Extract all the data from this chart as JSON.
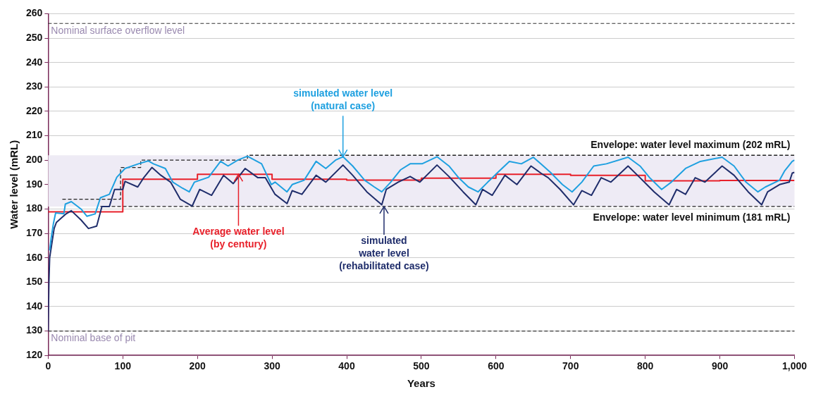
{
  "chart_data": {
    "type": "line",
    "xlabel": "Years",
    "ylabel": "Water level (mRL)",
    "xlim": [
      0,
      1000
    ],
    "xticks": [
      0,
      100,
      200,
      300,
      400,
      500,
      600,
      700,
      800,
      900,
      {
        "value": 1000,
        "label": "1,000"
      }
    ],
    "ylim": [
      120,
      260
    ],
    "yticks": [
      120,
      130,
      140,
      150,
      160,
      170,
      180,
      190,
      200,
      210,
      220,
      230,
      240,
      250,
      260
    ],
    "grid": "y",
    "legend": false,
    "line_style": "solid",
    "marker": "none",
    "series": [
      {
        "color": "#1ea0e0",
        "x": [
          2,
          4,
          7,
          10,
          21,
          23,
          31,
          44,
          52,
          63,
          70,
          82,
          92,
          103,
          121,
          134,
          141,
          157,
          167,
          180,
          189,
          196,
          215,
          231,
          241,
          254,
          267,
          286,
          299,
          304,
          320,
          327,
          343,
          359,
          372,
          385,
          395,
          408,
          424,
          437,
          447,
          459,
          472,
          485,
          501,
          521,
          537,
          550,
          563,
          576,
          589,
          605,
          618,
          634,
          650,
          660,
          673,
          689,
          702,
          715,
          731,
          748,
          777,
          793,
          806,
          822,
          835,
          854,
          874,
          903,
          919,
          935,
          951,
          961,
          980,
          987,
          997,
          1000
        ],
        "values": [
          163,
          168,
          174,
          178.4,
          178,
          182,
          183,
          180,
          177,
          178,
          184.6,
          186,
          193,
          196.6,
          198.5,
          199.7,
          198.5,
          196.6,
          191,
          188.5,
          187,
          191,
          193,
          199.5,
          197.6,
          200,
          201.6,
          198.5,
          190,
          191,
          187,
          190,
          191.8,
          199.5,
          196.6,
          200,
          201.4,
          197.6,
          191.8,
          189,
          187,
          191,
          196,
          198.5,
          198.5,
          201.4,
          197.6,
          192.8,
          189,
          187,
          191,
          195.7,
          199.5,
          198.5,
          201.2,
          198.5,
          195,
          190,
          187,
          191,
          197.6,
          198.5,
          201.2,
          197.6,
          192.8,
          188,
          191,
          196.6,
          199.5,
          201.2,
          197.6,
          191,
          187,
          189,
          191.8,
          195.7,
          199.5,
          200
        ]
      },
      {
        "color": "#1f2d6b",
        "x": [
          0,
          1,
          2,
          5,
          8,
          11,
          24,
          31,
          44,
          54,
          65,
          72,
          82,
          89,
          100,
          103,
          120,
          128,
          139,
          151,
          164,
          177,
          193,
          203,
          219,
          235,
          248,
          264,
          281,
          291,
          304,
          320,
          327,
          340,
          359,
          372,
          395,
          408,
          427,
          447,
          453,
          469,
          485,
          498,
          521,
          537,
          556,
          573,
          582,
          595,
          612,
          628,
          647,
          660,
          670,
          686,
          704,
          715,
          728,
          741,
          754,
          777,
          793,
          812,
          832,
          842,
          854,
          867,
          880,
          903,
          919,
          938,
          956,
          964,
          980,
          993,
          997,
          1000
        ],
        "values": [
          130,
          150,
          160,
          166,
          172,
          174.5,
          178,
          179.3,
          175.5,
          172,
          173,
          181,
          181,
          188,
          188,
          191.3,
          189,
          192.8,
          197,
          193.8,
          191,
          184,
          181.2,
          188,
          185.6,
          193.8,
          190.4,
          196.6,
          192.8,
          192.8,
          186,
          182.2,
          187.5,
          186,
          193.8,
          191,
          198,
          193.8,
          187,
          181.7,
          188,
          191,
          193.3,
          191,
          198,
          193.3,
          187,
          181.7,
          188,
          185.6,
          193.8,
          190,
          197.6,
          194.7,
          192.8,
          188,
          181.7,
          187.5,
          185.6,
          192.8,
          191,
          197.6,
          192.8,
          187,
          181.7,
          188,
          186,
          192.8,
          191,
          197.6,
          193.8,
          187,
          181.7,
          187,
          190,
          191,
          194.7,
          195
        ]
      },
      {
        "type": "step",
        "color": "#e8202a",
        "x": [
          0,
          100,
          200,
          300,
          400,
          500,
          600,
          700,
          800,
          900,
          1000
        ],
        "values": [
          178.8,
          192.2,
          194.2,
          192.2,
          191.8,
          192.6,
          194.2,
          193.8,
          191.5,
          191.7,
          191.7
        ]
      },
      {
        "type": "step",
        "name": "Envelope: water level maximum (202 mRL)",
        "color": "#222222",
        "line_style": "dashed",
        "x": [
          19,
          97,
          124,
          267,
          1000
        ],
        "values": [
          184,
          197,
          200,
          202,
          202
        ]
      },
      {
        "type": "step",
        "name": "Envelope: water level minimum (181 mRL)",
        "color": "#222222",
        "line_style": "dashed",
        "x": [
          70,
          1000
        ],
        "values": [
          181,
          181
        ]
      }
    ],
    "bands": [
      {
        "axis": "y",
        "from": 181,
        "to": 202,
        "color": "#eeebf5"
      }
    ],
    "ref_lines": [
      {
        "axis": "y",
        "value": 256,
        "label": "Nominal surface overflow level",
        "color": "#333333",
        "line_style": "dashed"
      },
      {
        "axis": "y",
        "value": 130,
        "label": "Nominal base of pit",
        "color": "#333333",
        "line_style": "dashed"
      }
    ],
    "annotations": [
      {
        "text": "simulated water level\n(natural case)",
        "x": 395,
        "y": 201.4
      },
      {
        "text": "Average water level\n(by century)",
        "x": 255,
        "y": 194.2
      },
      {
        "text": "simulated\nwater level\n(rehabilitated case)",
        "x": 450,
        "y": 181
      }
    ]
  }
}
